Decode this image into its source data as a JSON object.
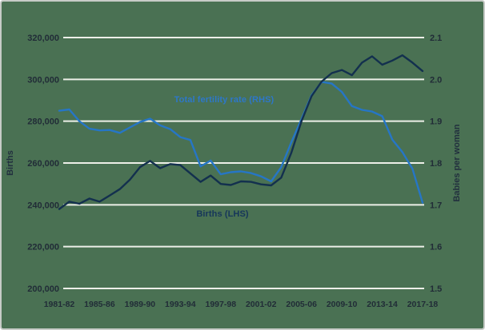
{
  "chart": {
    "left_axis_title": "Births",
    "right_axis_title": "Babies per woman",
    "fertility_series_label": "Total fertility rate (RHS)",
    "births_series_label": "Births (LHS)"
  },
  "chart_data": {
    "type": "line",
    "title": "",
    "categories": [
      "1981-82",
      "1982-83",
      "1983-84",
      "1984-85",
      "1985-86",
      "1986-87",
      "1987-88",
      "1988-89",
      "1989-90",
      "1990-91",
      "1991-92",
      "1992-93",
      "1993-94",
      "1994-95",
      "1995-96",
      "1996-97",
      "1997-98",
      "1998-99",
      "1999-00",
      "2000-01",
      "2001-02",
      "2002-03",
      "2003-04",
      "2004-05",
      "2005-06",
      "2006-07",
      "2007-08",
      "2008-09",
      "2009-10",
      "2010-11",
      "2011-12",
      "2012-13",
      "2013-14",
      "2014-15",
      "2015-16",
      "2016-17",
      "2017-18"
    ],
    "x_tick_labels": [
      "1981-82",
      "1985-86",
      "1989-90",
      "1993-94",
      "1997-98",
      "2001-02",
      "2005-06",
      "2009-10",
      "2013-14",
      "2017-18"
    ],
    "series": [
      {
        "name": "Total fertility rate (RHS)",
        "axis": "right",
        "color": "#2676c6",
        "values": [
          1.925,
          1.928,
          1.9,
          1.882,
          1.878,
          1.879,
          1.872,
          1.885,
          1.898,
          1.906,
          1.89,
          1.881,
          1.862,
          1.855,
          1.792,
          1.806,
          1.773,
          1.778,
          1.78,
          1.776,
          1.768,
          1.756,
          1.79,
          1.85,
          1.905,
          1.962,
          1.994,
          1.99,
          1.97,
          1.936,
          1.927,
          1.923,
          1.912,
          1.856,
          1.826,
          1.786,
          1.705
        ]
      },
      {
        "name": "Births (LHS)",
        "axis": "left",
        "color": "#13304e",
        "values": [
          238000,
          241500,
          240500,
          243000,
          241500,
          244500,
          247500,
          252000,
          258000,
          261000,
          257500,
          259500,
          259000,
          255000,
          251000,
          254000,
          250000,
          249500,
          251200,
          251000,
          249800,
          249300,
          253000,
          265000,
          280000,
          292000,
          299000,
          303000,
          304500,
          302000,
          308000,
          311000,
          307000,
          309000,
          311500,
          308000,
          304000
        ]
      }
    ],
    "left_axis": {
      "label": "Births",
      "min": 200000,
      "max": 320000,
      "tick_step": 20000,
      "tick_labels": [
        "320,000",
        "300,000",
        "280,000",
        "260,000",
        "240,000",
        "220,000",
        "200,000"
      ]
    },
    "right_axis": {
      "label": "Babies per woman",
      "min": 1.5,
      "max": 2.1,
      "tick_step": 0.1,
      "tick_labels": [
        "2.1",
        "2.0",
        "1.9",
        "1.8",
        "1.7",
        "1.6",
        "1.5"
      ]
    },
    "grid": true,
    "layout_hints": {
      "legend": "inline series labels on plot",
      "gridlines": "horizontal white",
      "background": "green panel"
    },
    "colors": {
      "background": "#4a7153",
      "gridline": "#edefe8",
      "births_line": "#13304e",
      "fertility_line": "#2676c6",
      "births_label_text": "#16365a",
      "fertility_label_text": "#2d77c9",
      "tick_text": "#212c37"
    }
  }
}
